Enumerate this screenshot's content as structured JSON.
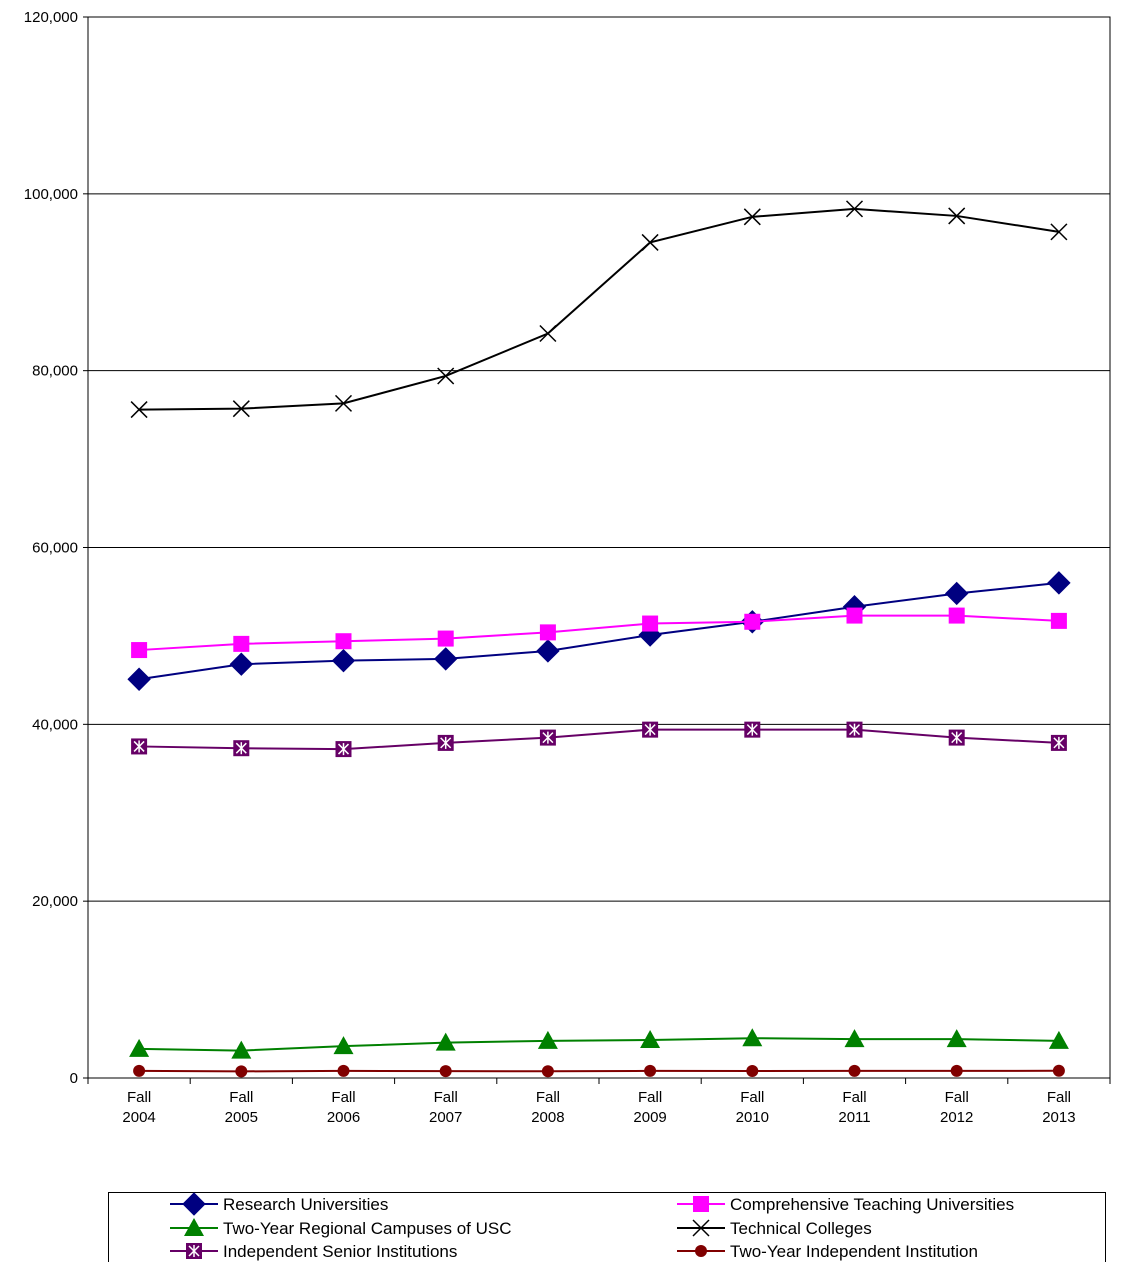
{
  "chart_data": {
    "type": "line",
    "title": "",
    "xlabel": "",
    "ylabel": "",
    "ylim": [
      0,
      120000
    ],
    "yticks": [
      0,
      20000,
      40000,
      60000,
      80000,
      100000,
      120000
    ],
    "ytick_labels": [
      "0",
      "20,000",
      "40,000",
      "60,000",
      "80,000",
      "100,000",
      "120,000"
    ],
    "grid": "horizontal major gridlines",
    "legend_position": "bottom",
    "categories": [
      [
        "Fall",
        "2004"
      ],
      [
        "Fall",
        "2005"
      ],
      [
        "Fall",
        "2006"
      ],
      [
        "Fall",
        "2007"
      ],
      [
        "Fall",
        "2008"
      ],
      [
        "Fall",
        "2009"
      ],
      [
        "Fall",
        "2010"
      ],
      [
        "Fall",
        "2011"
      ],
      [
        "Fall",
        "2012"
      ],
      [
        "Fall",
        "2013"
      ]
    ],
    "series": [
      {
        "name": "Research Universities",
        "color": "#000080",
        "marker": "diamond",
        "values": [
          45100,
          46800,
          47200,
          47400,
          48300,
          50100,
          51600,
          53300,
          54800,
          56000
        ]
      },
      {
        "name": "Comprehensive Teaching Universities",
        "color": "#FF00FF",
        "marker": "square",
        "values": [
          48400,
          49100,
          49400,
          49700,
          50400,
          51400,
          51600,
          52300,
          52300,
          51700
        ]
      },
      {
        "name": "Two-Year Regional Campuses of USC",
        "color": "#008000",
        "marker": "triangle",
        "values": [
          3300,
          3100,
          3600,
          4000,
          4200,
          4300,
          4500,
          4400,
          4400,
          4200
        ]
      },
      {
        "name": "Technical Colleges",
        "color": "#000000",
        "marker": "x",
        "values": [
          75600,
          75700,
          76300,
          79400,
          84200,
          94500,
          97400,
          98300,
          97500,
          95700
        ]
      },
      {
        "name": "Independent Senior Institutions",
        "color": "#660066",
        "marker": "boxed-star",
        "values": [
          37500,
          37300,
          37200,
          37900,
          38500,
          39400,
          39400,
          39400,
          38500,
          37900
        ]
      },
      {
        "name": "Two-Year Independent Institution",
        "color": "#800000",
        "marker": "circle",
        "values": [
          800,
          750,
          800,
          780,
          760,
          800,
          790,
          800,
          800,
          820
        ]
      }
    ]
  }
}
